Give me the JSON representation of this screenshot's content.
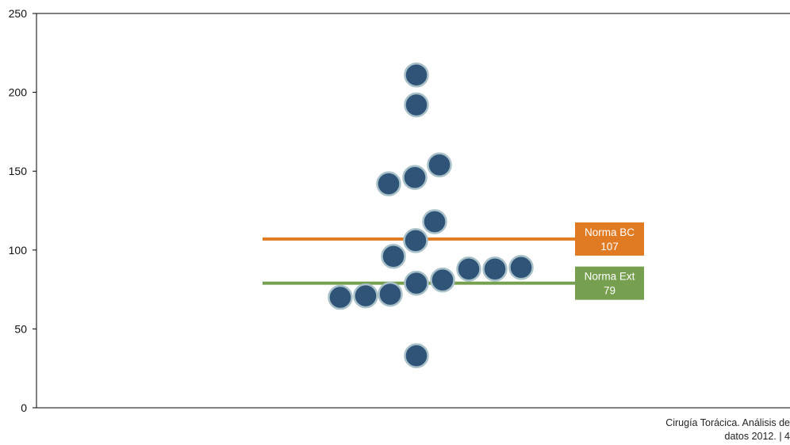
{
  "chart_data": {
    "type": "scatter",
    "title": "",
    "xlabel": "",
    "ylabel": "",
    "ylim": [
      0,
      250
    ],
    "yticks": [
      0,
      50,
      100,
      150,
      200,
      250
    ],
    "grid": false,
    "points": [
      {
        "y": 211
      },
      {
        "y": 192
      },
      {
        "y": 154
      },
      {
        "y": 146
      },
      {
        "y": 142
      },
      {
        "y": 118
      },
      {
        "y": 106
      },
      {
        "y": 96
      },
      {
        "y": 89
      },
      {
        "y": 88
      },
      {
        "y": 88
      },
      {
        "y": 81
      },
      {
        "y": 79
      },
      {
        "y": 72
      },
      {
        "y": 71
      },
      {
        "y": 70
      },
      {
        "y": 33
      }
    ],
    "reference_lines": [
      {
        "name": "Norma BC",
        "value": 107,
        "label_name": "Norma BC",
        "label_value": "107",
        "color": "#E07B24"
      },
      {
        "name": "Norma Ext",
        "value": 79,
        "label_name": "Norma Ext",
        "label_value": "79",
        "color": "#76A050"
      }
    ],
    "point_color": "#2F5478",
    "point_border_color": "#A8C0C8"
  },
  "footer": {
    "line1": "Cirugía Torácica. Análisis de",
    "line2": "datos 2012. | 4"
  }
}
